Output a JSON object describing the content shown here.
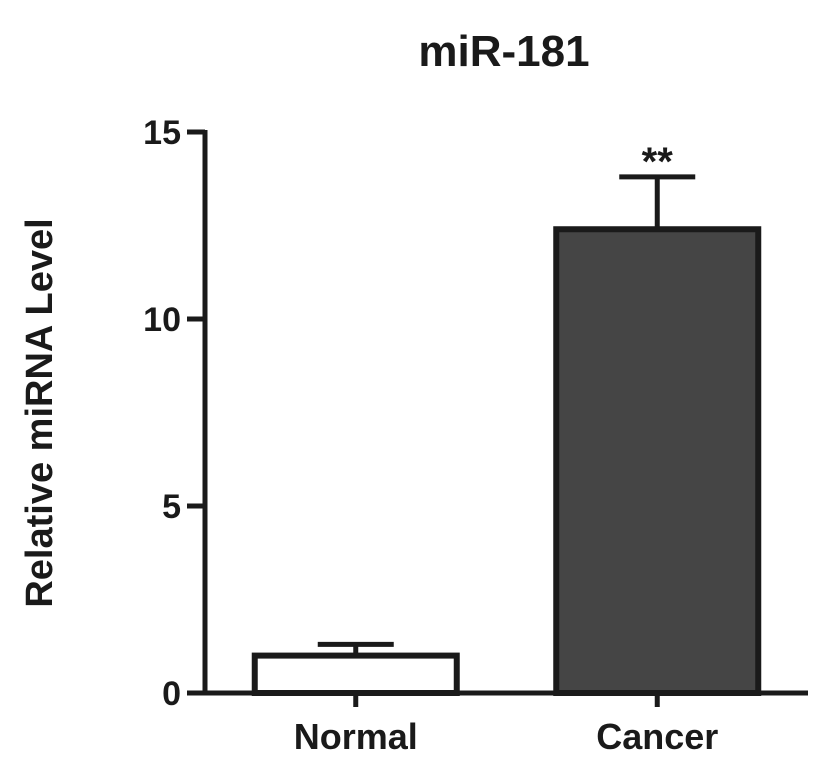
{
  "chart_data": {
    "type": "bar",
    "title": "miR-181",
    "xlabel": "",
    "ylabel": "Relative miRNA Level",
    "categories": [
      "Normal",
      "Cancer"
    ],
    "values": [
      1.0,
      12.4
    ],
    "error_upper": [
      1.3,
      13.8
    ],
    "annotations": [
      "",
      "**"
    ],
    "ylim": [
      0,
      15
    ],
    "yticks": [
      0,
      5,
      10,
      15
    ],
    "ytick_labels": [
      "0",
      "5",
      "10",
      "15"
    ],
    "grid": false,
    "legend": "none",
    "colors": {
      "bars": [
        "#ffffff",
        "#454545"
      ],
      "edge": "#1a1a1a",
      "axis": "#1a1a1a"
    }
  }
}
